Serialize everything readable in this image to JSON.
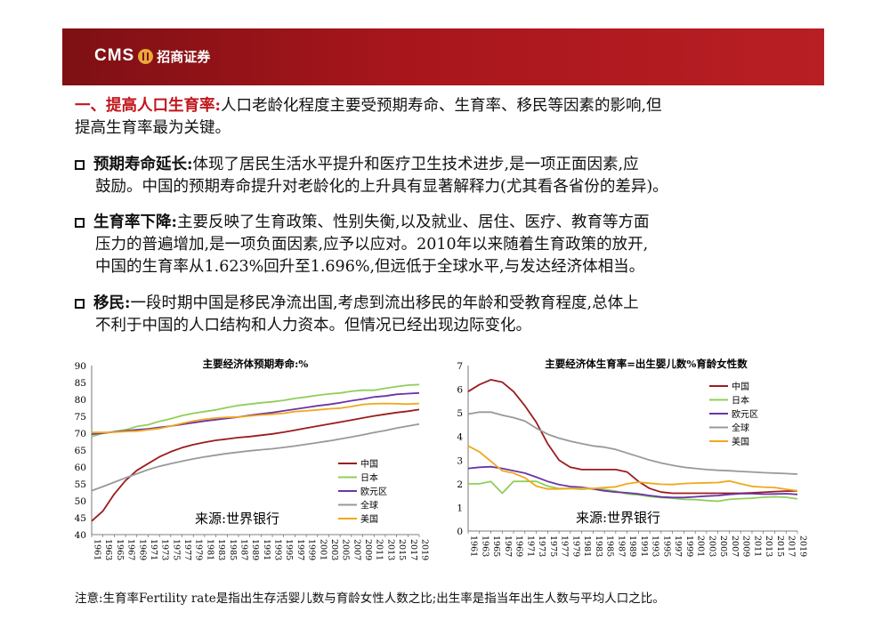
{
  "header": {
    "logo_text": "CMS",
    "logo_cn": "招商证券"
  },
  "intro": {
    "title": "一、提高人口生育率:",
    "line1": "人口老龄化程度主要受预期寿命、生育率、移民等因素的影响,但",
    "line2": "提高生育率最为关键。"
  },
  "bullets": [
    {
      "head": "预期寿命延长:",
      "lines": [
        "体现了居民生活水平提升和医疗卫生技术进步,是一项正面因素,应",
        "鼓励。中国的预期寿命提升对老龄化的上升具有显著解释力(尤其看各省份的差异)。"
      ]
    },
    {
      "head": "生育率下降:",
      "lines": [
        "主要反映了生育政策、性别失衡,以及就业、居住、医疗、教育等方面",
        "压力的普遍增加,是一项负面因素,应予以应对。2010年以来随着生育政策的放开,",
        "中国的生育率从1.623%回升至1.696%,但远低于全球水平,与发达经济体相当。"
      ]
    },
    {
      "head": "移民:",
      "lines": [
        "一段时期中国是移民净流出国,考虑到流出移民的年龄和受教育程度,总体上",
        "不利于中国的人口结构和人力资本。但情况已经出现边际变化。"
      ]
    }
  ],
  "footnote": "注意:生育率Fertility rate是指出生存活婴儿数与育龄女性人数之比;出生率是指当年出生人数与平均人口之比。",
  "chart_data": [
    {
      "type": "line",
      "title": "主要经济体预期寿命:%",
      "source": "来源:世界银行",
      "x": [
        1961,
        1963,
        1965,
        1967,
        1969,
        1971,
        1973,
        1975,
        1977,
        1979,
        1981,
        1983,
        1985,
        1987,
        1989,
        1991,
        1993,
        1995,
        1997,
        1999,
        2001,
        2003,
        2005,
        2007,
        2009,
        2011,
        2013,
        2015,
        2017,
        2019
      ],
      "xticks": [
        "1961",
        "1963",
        "1965",
        "1967",
        "1969",
        "1971",
        "1973",
        "1975",
        "1977",
        "1979",
        "1981",
        "1983",
        "1985",
        "1987",
        "1989",
        "1991",
        "1993",
        "1995",
        "1997",
        "1999",
        "2001",
        "2003",
        "2005",
        "2007",
        "2009",
        "2011",
        "2013",
        "2015",
        "2017",
        "2019"
      ],
      "ylim": [
        40,
        90
      ],
      "yticks": [
        40,
        45,
        50,
        55,
        60,
        65,
        70,
        75,
        80,
        85,
        90
      ],
      "legend_position": "center-right",
      "series": [
        {
          "name": "中国",
          "color": "#9b1c1f",
          "values": [
            44.0,
            47.0,
            52.0,
            56.0,
            59.0,
            61.0,
            63.0,
            64.5,
            65.7,
            66.6,
            67.3,
            67.9,
            68.3,
            68.7,
            69.0,
            69.4,
            69.8,
            70.3,
            70.9,
            71.5,
            72.1,
            72.7,
            73.3,
            73.9,
            74.5,
            75.1,
            75.6,
            76.1,
            76.5,
            77.0
          ]
        },
        {
          "name": "日本",
          "color": "#8fcf5a",
          "values": [
            69.0,
            70.0,
            70.5,
            71.0,
            72.0,
            72.5,
            73.5,
            74.3,
            75.2,
            75.9,
            76.4,
            76.9,
            77.6,
            78.2,
            78.6,
            79.0,
            79.3,
            79.7,
            80.3,
            80.7,
            81.2,
            81.6,
            81.9,
            82.4,
            82.7,
            82.7,
            83.3,
            83.8,
            84.2,
            84.4
          ]
        },
        {
          "name": "欧元区",
          "color": "#6a35a8",
          "values": [
            69.7,
            70.0,
            70.4,
            70.7,
            71.0,
            71.3,
            71.7,
            72.1,
            72.6,
            73.1,
            73.6,
            74.0,
            74.4,
            74.8,
            75.3,
            75.7,
            76.1,
            76.6,
            77.1,
            77.6,
            78.1,
            78.5,
            79.0,
            79.6,
            80.1,
            80.7,
            81.0,
            81.5,
            81.7,
            81.9
          ]
        },
        {
          "name": "全球",
          "color": "#999999",
          "values": [
            53.0,
            54.2,
            55.5,
            56.8,
            58.0,
            59.2,
            60.2,
            61.0,
            61.7,
            62.4,
            63.0,
            63.5,
            64.0,
            64.4,
            64.8,
            65.1,
            65.4,
            65.8,
            66.2,
            66.7,
            67.2,
            67.7,
            68.3,
            68.9,
            69.5,
            70.2,
            70.8,
            71.5,
            72.1,
            72.7
          ]
        },
        {
          "name": "美国",
          "color": "#f0a81c",
          "values": [
            70.2,
            70.2,
            70.3,
            70.5,
            70.6,
            71.0,
            71.4,
            72.1,
            72.9,
            73.6,
            74.1,
            74.5,
            74.7,
            74.8,
            75.1,
            75.4,
            75.6,
            75.9,
            76.4,
            76.6,
            76.9,
            77.2,
            77.4,
            77.9,
            78.5,
            78.7,
            78.8,
            78.7,
            78.6,
            78.8
          ]
        }
      ]
    },
    {
      "type": "line",
      "title": "主要经济体生育率=出生婴儿数%育龄女性数",
      "source": "来源:世界银行",
      "x": [
        1961,
        1963,
        1965,
        1967,
        1969,
        1971,
        1973,
        1975,
        1977,
        1979,
        1981,
        1983,
        1985,
        1987,
        1989,
        1991,
        1993,
        1995,
        1997,
        1999,
        2001,
        2003,
        2005,
        2007,
        2009,
        2011,
        2013,
        2015,
        2017,
        2019
      ],
      "xticks": [
        "1961",
        "1963",
        "1965",
        "1967",
        "1969",
        "1971",
        "1973",
        "1975",
        "1977",
        "1979",
        "1981",
        "1983",
        "1985",
        "1987",
        "1989",
        "1991",
        "1993",
        "1995",
        "1997",
        "1999",
        "2001",
        "2003",
        "2005",
        "2007",
        "2009",
        "2011",
        "2013",
        "2015",
        "2017",
        "2019"
      ],
      "ylim": [
        0,
        7
      ],
      "yticks": [
        0,
        1,
        2,
        3,
        4,
        5,
        6,
        7
      ],
      "legend_position": "top-right",
      "series": [
        {
          "name": "中国",
          "color": "#9b1c1f",
          "values": [
            5.9,
            6.2,
            6.4,
            6.3,
            5.9,
            5.3,
            4.6,
            3.7,
            3.0,
            2.7,
            2.6,
            2.6,
            2.6,
            2.6,
            2.5,
            2.1,
            1.8,
            1.65,
            1.6,
            1.6,
            1.6,
            1.6,
            1.6,
            1.6,
            1.6,
            1.62,
            1.64,
            1.67,
            1.69,
            1.7
          ]
        },
        {
          "name": "日本",
          "color": "#8fcf5a",
          "values": [
            2.0,
            2.0,
            2.1,
            1.6,
            2.1,
            2.1,
            2.1,
            1.9,
            1.8,
            1.8,
            1.77,
            1.8,
            1.76,
            1.69,
            1.57,
            1.53,
            1.46,
            1.42,
            1.39,
            1.34,
            1.33,
            1.29,
            1.26,
            1.34,
            1.37,
            1.39,
            1.43,
            1.45,
            1.43,
            1.36
          ]
        },
        {
          "name": "欧元区",
          "color": "#6a35a8",
          "values": [
            2.65,
            2.7,
            2.72,
            2.65,
            2.55,
            2.45,
            2.28,
            2.1,
            1.97,
            1.88,
            1.85,
            1.78,
            1.7,
            1.65,
            1.62,
            1.57,
            1.5,
            1.44,
            1.42,
            1.42,
            1.45,
            1.48,
            1.5,
            1.55,
            1.58,
            1.58,
            1.56,
            1.57,
            1.58,
            1.55
          ]
        },
        {
          "name": "全球",
          "color": "#999999",
          "values": [
            4.95,
            5.03,
            5.03,
            4.9,
            4.8,
            4.65,
            4.35,
            4.1,
            3.93,
            3.8,
            3.7,
            3.6,
            3.55,
            3.45,
            3.3,
            3.15,
            3.0,
            2.88,
            2.78,
            2.7,
            2.65,
            2.6,
            2.57,
            2.55,
            2.52,
            2.5,
            2.47,
            2.45,
            2.43,
            2.41
          ]
        },
        {
          "name": "美国",
          "color": "#f0a81c",
          "values": [
            3.6,
            3.35,
            2.95,
            2.55,
            2.45,
            2.25,
            1.9,
            1.78,
            1.78,
            1.8,
            1.81,
            1.8,
            1.84,
            1.87,
            2.0,
            2.07,
            2.02,
            1.98,
            1.97,
            2.01,
            2.03,
            2.04,
            2.05,
            2.12,
            2.0,
            1.89,
            1.86,
            1.84,
            1.77,
            1.71
          ]
        }
      ]
    }
  ]
}
